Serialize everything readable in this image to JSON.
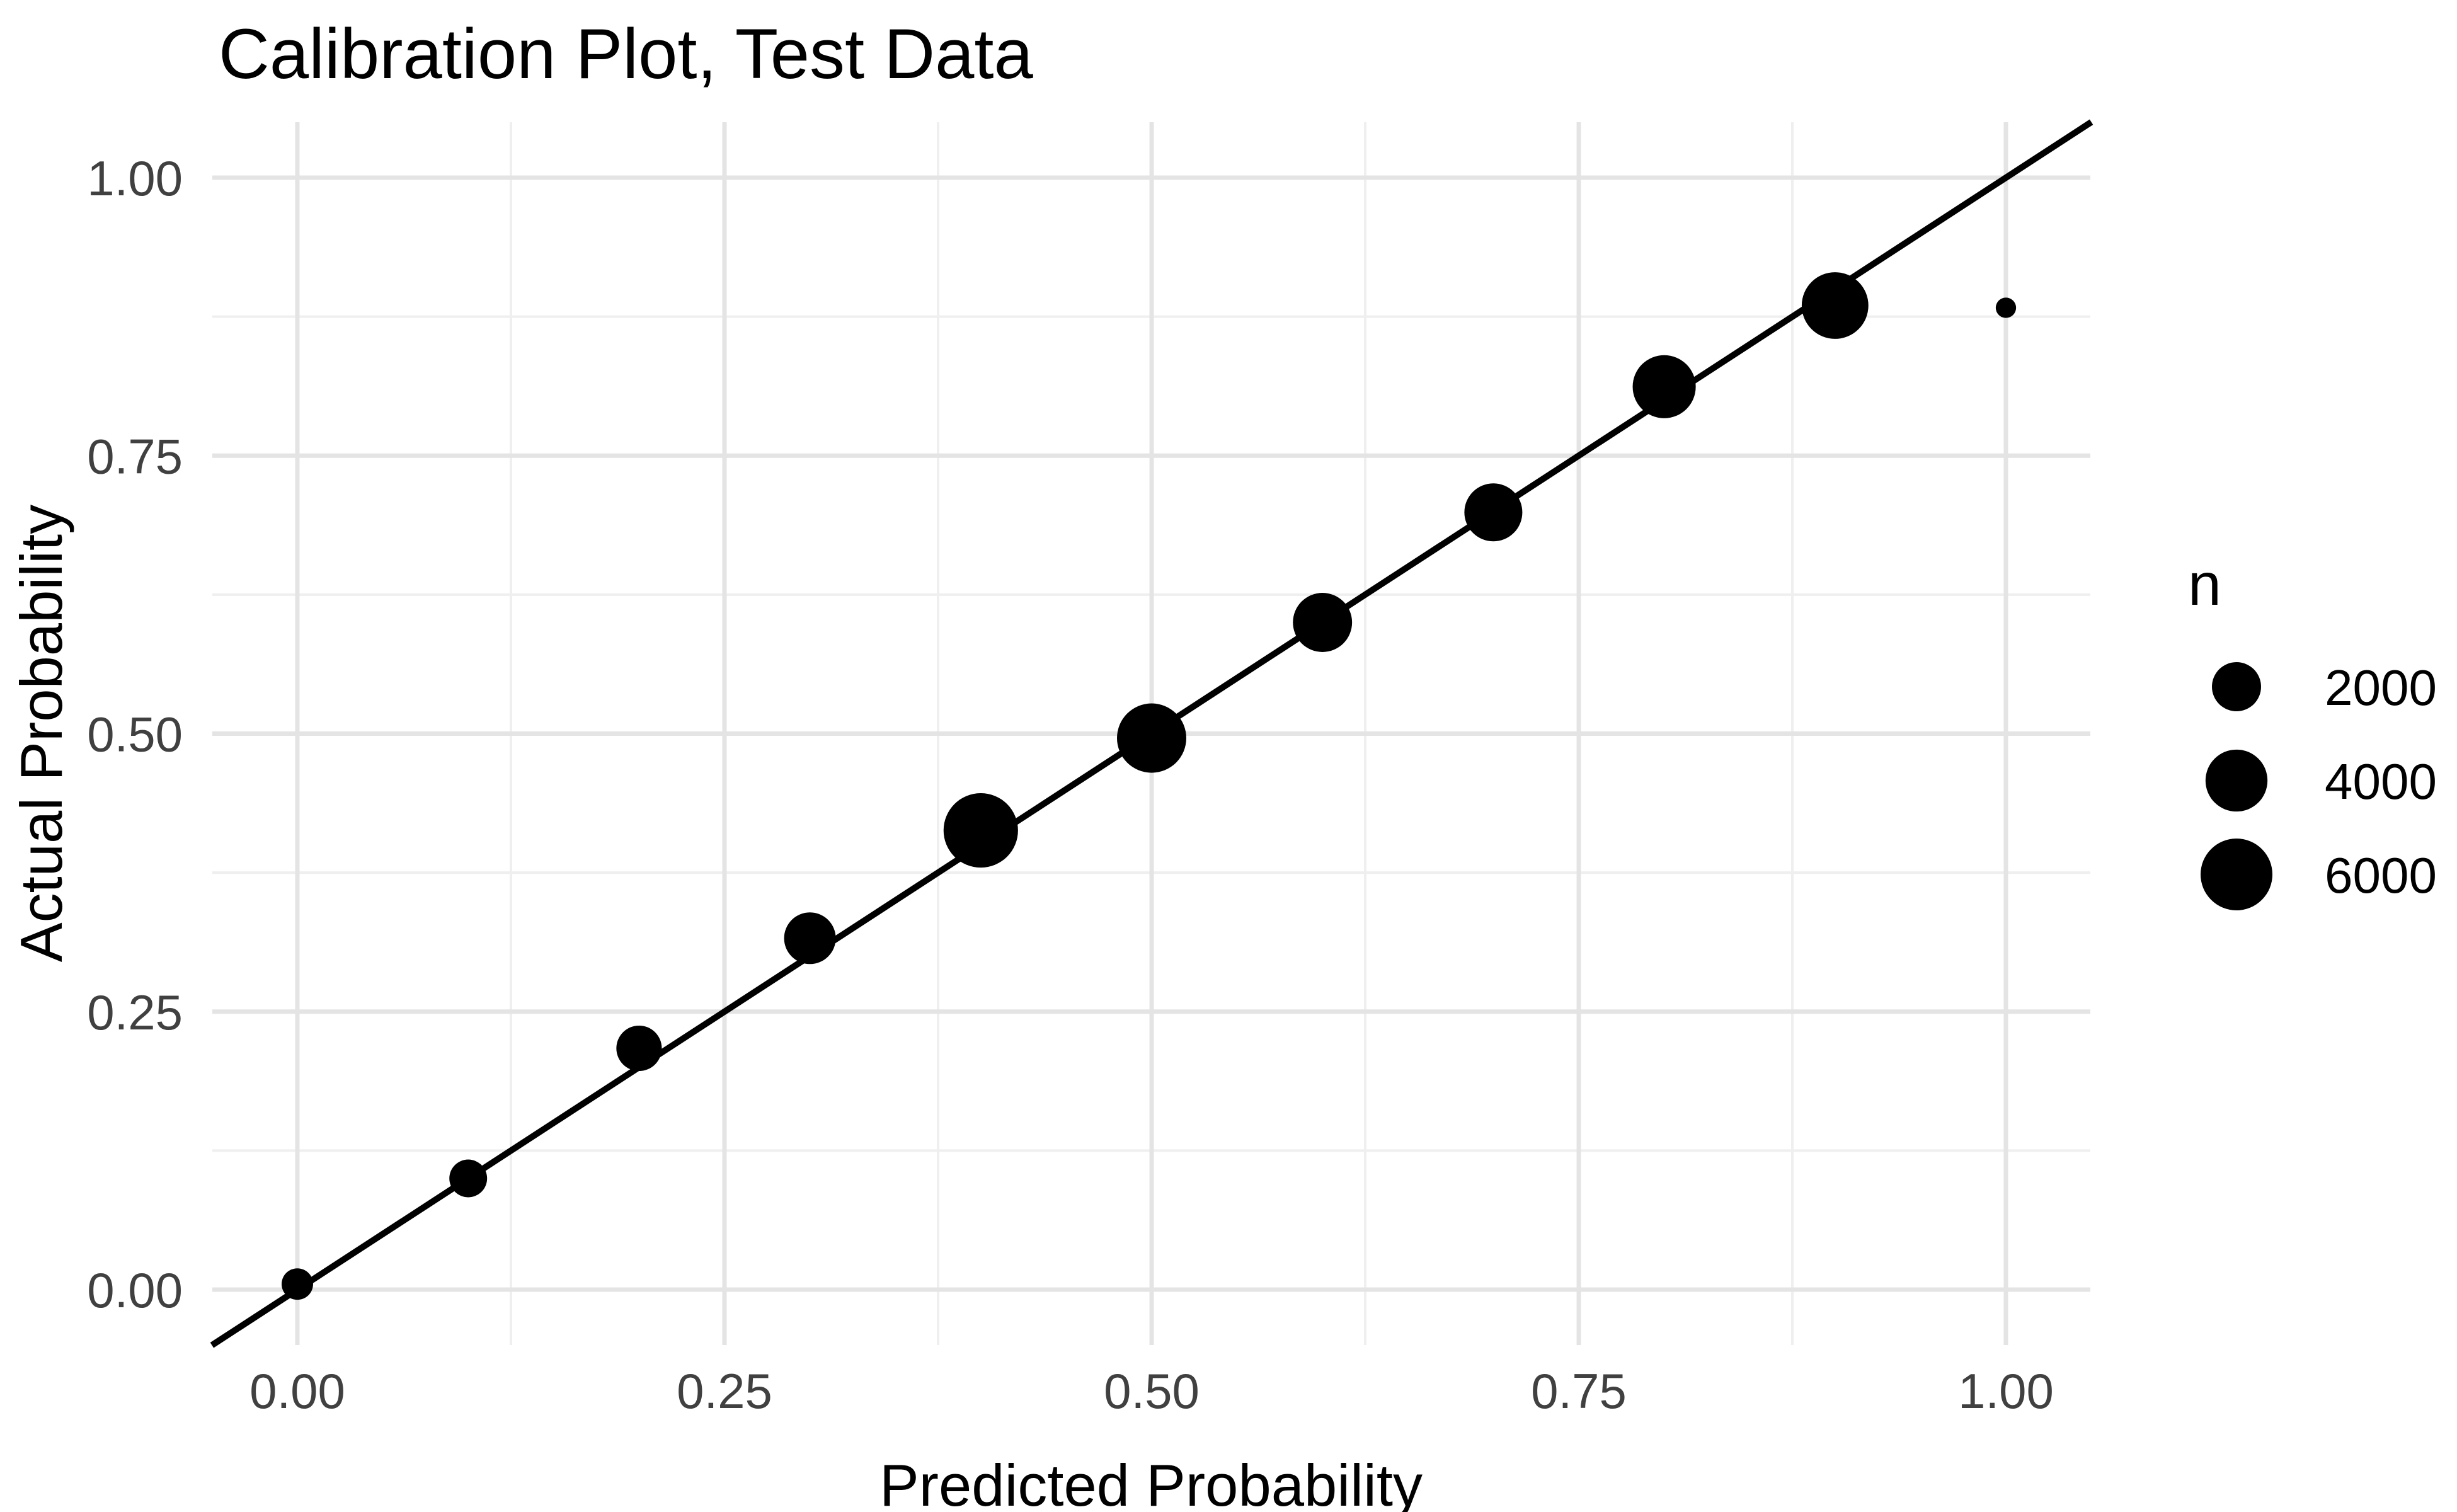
{
  "page": {
    "background": "#FFFFFF"
  },
  "chart_data": {
    "type": "scatter",
    "subtype": "bubble-calibration",
    "title": "Calibration Plot, Test Data",
    "xlabel": "Predicted Probability",
    "ylabel": "Actual Probability",
    "xlim": [
      -0.05,
      1.05
    ],
    "ylim": [
      -0.05,
      1.05
    ],
    "grid": "on",
    "x_ticks": [
      0.0,
      0.25,
      0.5,
      0.75,
      1.0
    ],
    "x_tick_labels": [
      "0.00",
      "0.25",
      "0.50",
      "0.75",
      "1.00"
    ],
    "y_ticks": [
      0.0,
      0.25,
      0.5,
      0.75,
      1.0
    ],
    "y_tick_labels": [
      "0.00",
      "0.25",
      "0.50",
      "0.75",
      "1.00"
    ],
    "minor_grid_positions": [
      0.125,
      0.375,
      0.625,
      0.875
    ],
    "reference_line": {
      "name": "identity line y = x",
      "from": [
        -0.05,
        -0.05
      ],
      "to": [
        1.05,
        1.05
      ],
      "color": "#000000"
    },
    "series": [
      {
        "name": "calibration bins",
        "points": [
          {
            "predicted": 0.0,
            "actual": 0.005,
            "n": 370
          },
          {
            "predicted": 0.1,
            "actual": 0.1,
            "n": 800
          },
          {
            "predicted": 0.2,
            "actual": 0.217,
            "n": 1550
          },
          {
            "predicted": 0.3,
            "actual": 0.316,
            "n": 2340
          },
          {
            "predicted": 0.4,
            "actual": 0.413,
            "n": 6600
          },
          {
            "predicted": 0.5,
            "actual": 0.496,
            "n": 5450
          },
          {
            "predicted": 0.6,
            "actual": 0.6,
            "n": 3500
          },
          {
            "predicted": 0.7,
            "actual": 0.699,
            "n": 3300
          },
          {
            "predicted": 0.8,
            "actual": 0.812,
            "n": 4200
          },
          {
            "predicted": 0.9,
            "actual": 0.885,
            "n": 4900
          },
          {
            "predicted": 1.0,
            "actual": 0.883,
            "n": 10
          }
        ]
      }
    ],
    "legend": {
      "title": "n",
      "position": "right",
      "entries": [
        {
          "label": "2000",
          "n": 2000
        },
        {
          "label": "4000",
          "n": 4000
        },
        {
          "label": "6000",
          "n": 6000
        }
      ]
    },
    "colors": {
      "point": "#000000",
      "reference_line": "#000000",
      "grid_major": "#E4E4E4",
      "grid_minor": "#EFEFEF",
      "tick_text": "#404040",
      "text": "#000000",
      "background": "#FFFFFF"
    }
  }
}
